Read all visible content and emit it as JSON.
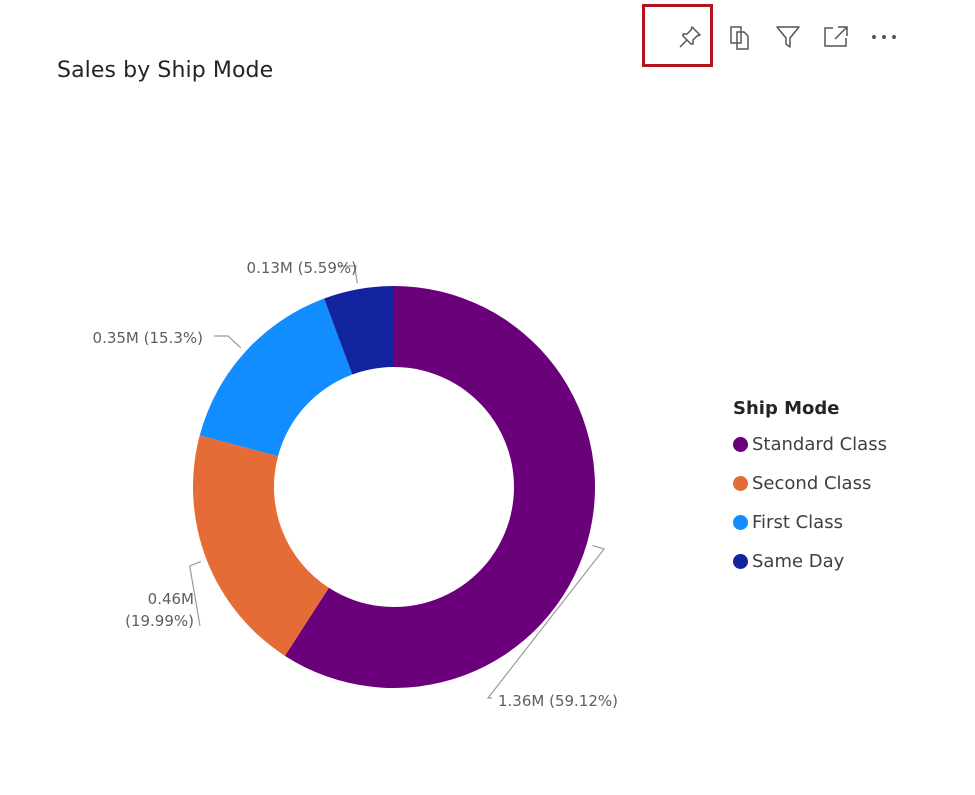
{
  "visual": {
    "title": "Sales by Ship Mode"
  },
  "toolbar": {
    "items": [
      {
        "name": "pin-visual-button",
        "icon": "pin-icon"
      },
      {
        "name": "copy-visual-button",
        "icon": "copy-icon"
      },
      {
        "name": "filter-button",
        "icon": "filter-icon"
      },
      {
        "name": "focus-mode-button",
        "icon": "expand-icon"
      },
      {
        "name": "more-options-button",
        "icon": "more-icon"
      }
    ],
    "highlight_color": "#b3141c"
  },
  "legend": {
    "title": "Ship Mode",
    "position": "right"
  },
  "chart_data": {
    "type": "donut",
    "title": "Sales by Ship Mode",
    "legend_title": "Ship Mode",
    "categories": [
      "Standard Class",
      "Second Class",
      "First Class",
      "Same Day"
    ],
    "values": [
      1.36,
      0.46,
      0.35,
      0.13
    ],
    "unit": "M",
    "percentages": [
      59.12,
      19.99,
      15.3,
      5.59
    ],
    "data_labels": [
      "1.36M (59.12%)",
      "0.46M\n(19.99%)",
      "0.35M (15.3%)",
      "0.13M (5.59%)"
    ],
    "colors": [
      "#6b007b",
      "#e66c37",
      "#118dff",
      "#12239e"
    ]
  }
}
